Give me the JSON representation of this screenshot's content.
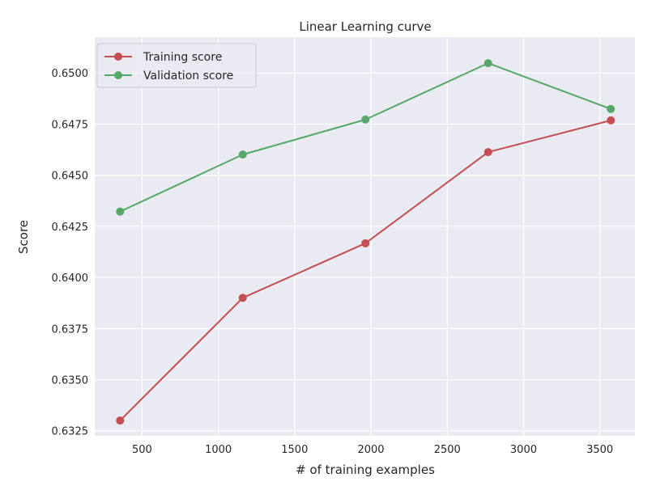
{
  "chart_data": {
    "type": "line",
    "title": "Linear Learning curve",
    "xlabel": "# of training examples",
    "ylabel": "Score",
    "xlim": [
      190,
      3730
    ],
    "ylim": [
      0.63225,
      0.65175
    ],
    "xticks": [
      500,
      1000,
      1500,
      2000,
      2500,
      3000,
      3500
    ],
    "xtick_labels": [
      "500",
      "1000",
      "1500",
      "2000",
      "2500",
      "3000",
      "3500"
    ],
    "yticks": [
      0.6325,
      0.635,
      0.6375,
      0.64,
      0.6425,
      0.645,
      0.6475,
      0.65
    ],
    "ytick_labels": [
      "0.6325",
      "0.6350",
      "0.6375",
      "0.6400",
      "0.6425",
      "0.6450",
      "0.6475",
      "0.6500"
    ],
    "grid": true,
    "legend_position": "upper-left",
    "x": [
      356,
      1160,
      1964,
      2768,
      3572
    ],
    "series": [
      {
        "name": "Training score",
        "color": "#c44e52",
        "values": [
          0.633,
          0.639,
          0.64167,
          0.64613,
          0.64768
        ]
      },
      {
        "name": "Validation score",
        "color": "#55a868",
        "values": [
          0.64322,
          0.64601,
          0.64772,
          0.65048,
          0.64824
        ]
      }
    ]
  }
}
